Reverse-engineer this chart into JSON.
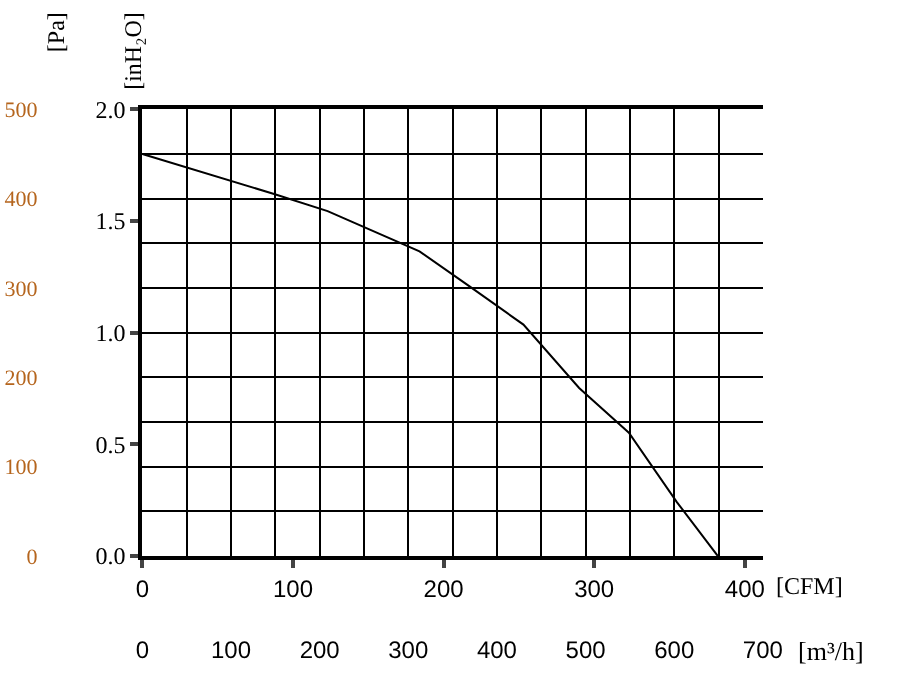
{
  "chart_data": {
    "type": "line",
    "x": [
      0,
      88,
      123,
      184,
      217,
      253,
      290,
      323,
      355,
      382
    ],
    "series": [
      {
        "color": "#000000",
        "values": [
          450,
          405,
          386,
          341,
          302,
          259,
          188,
          138,
          60,
          0
        ]
      }
    ],
    "xlabel": "[CFM]",
    "ylabel": "[Pa]",
    "y2label": "[inH₂O]",
    "x2label": "[m³/h]",
    "xlim": [
      0,
      412
    ],
    "xticks": [
      0,
      100,
      200,
      300,
      400
    ],
    "x2lim": [
      0,
      700
    ],
    "x2ticks": [
      0,
      {
        "value": 50,
        "label": null
      },
      100,
      {
        "value": 150,
        "label": null
      },
      200,
      {
        "value": 250,
        "label": null
      },
      300,
      {
        "value": 350,
        "label": null
      },
      400,
      {
        "value": 450,
        "label": null
      },
      500,
      {
        "value": 550,
        "label": null
      },
      600,
      {
        "value": 650,
        "label": null
      },
      700
    ],
    "ylim": [
      0,
      500
    ],
    "yticks": [
      0,
      {
        "value": 50,
        "label": null
      },
      100,
      {
        "value": 150,
        "label": null
      },
      200,
      {
        "value": 250,
        "label": null
      },
      300,
      {
        "value": 350,
        "label": null
      },
      400,
      {
        "value": 450,
        "label": null
      },
      500
    ],
    "y2lim": [
      0,
      2.0
    ],
    "y2ticks": [
      {
        "value": 0,
        "label": "0.0"
      },
      0.5,
      {
        "value": 1,
        "label": "1.0"
      },
      1.5,
      {
        "value": 2,
        "label": "2.0"
      }
    ],
    "grid": true,
    "marker": "none",
    "line_style": "solid"
  }
}
